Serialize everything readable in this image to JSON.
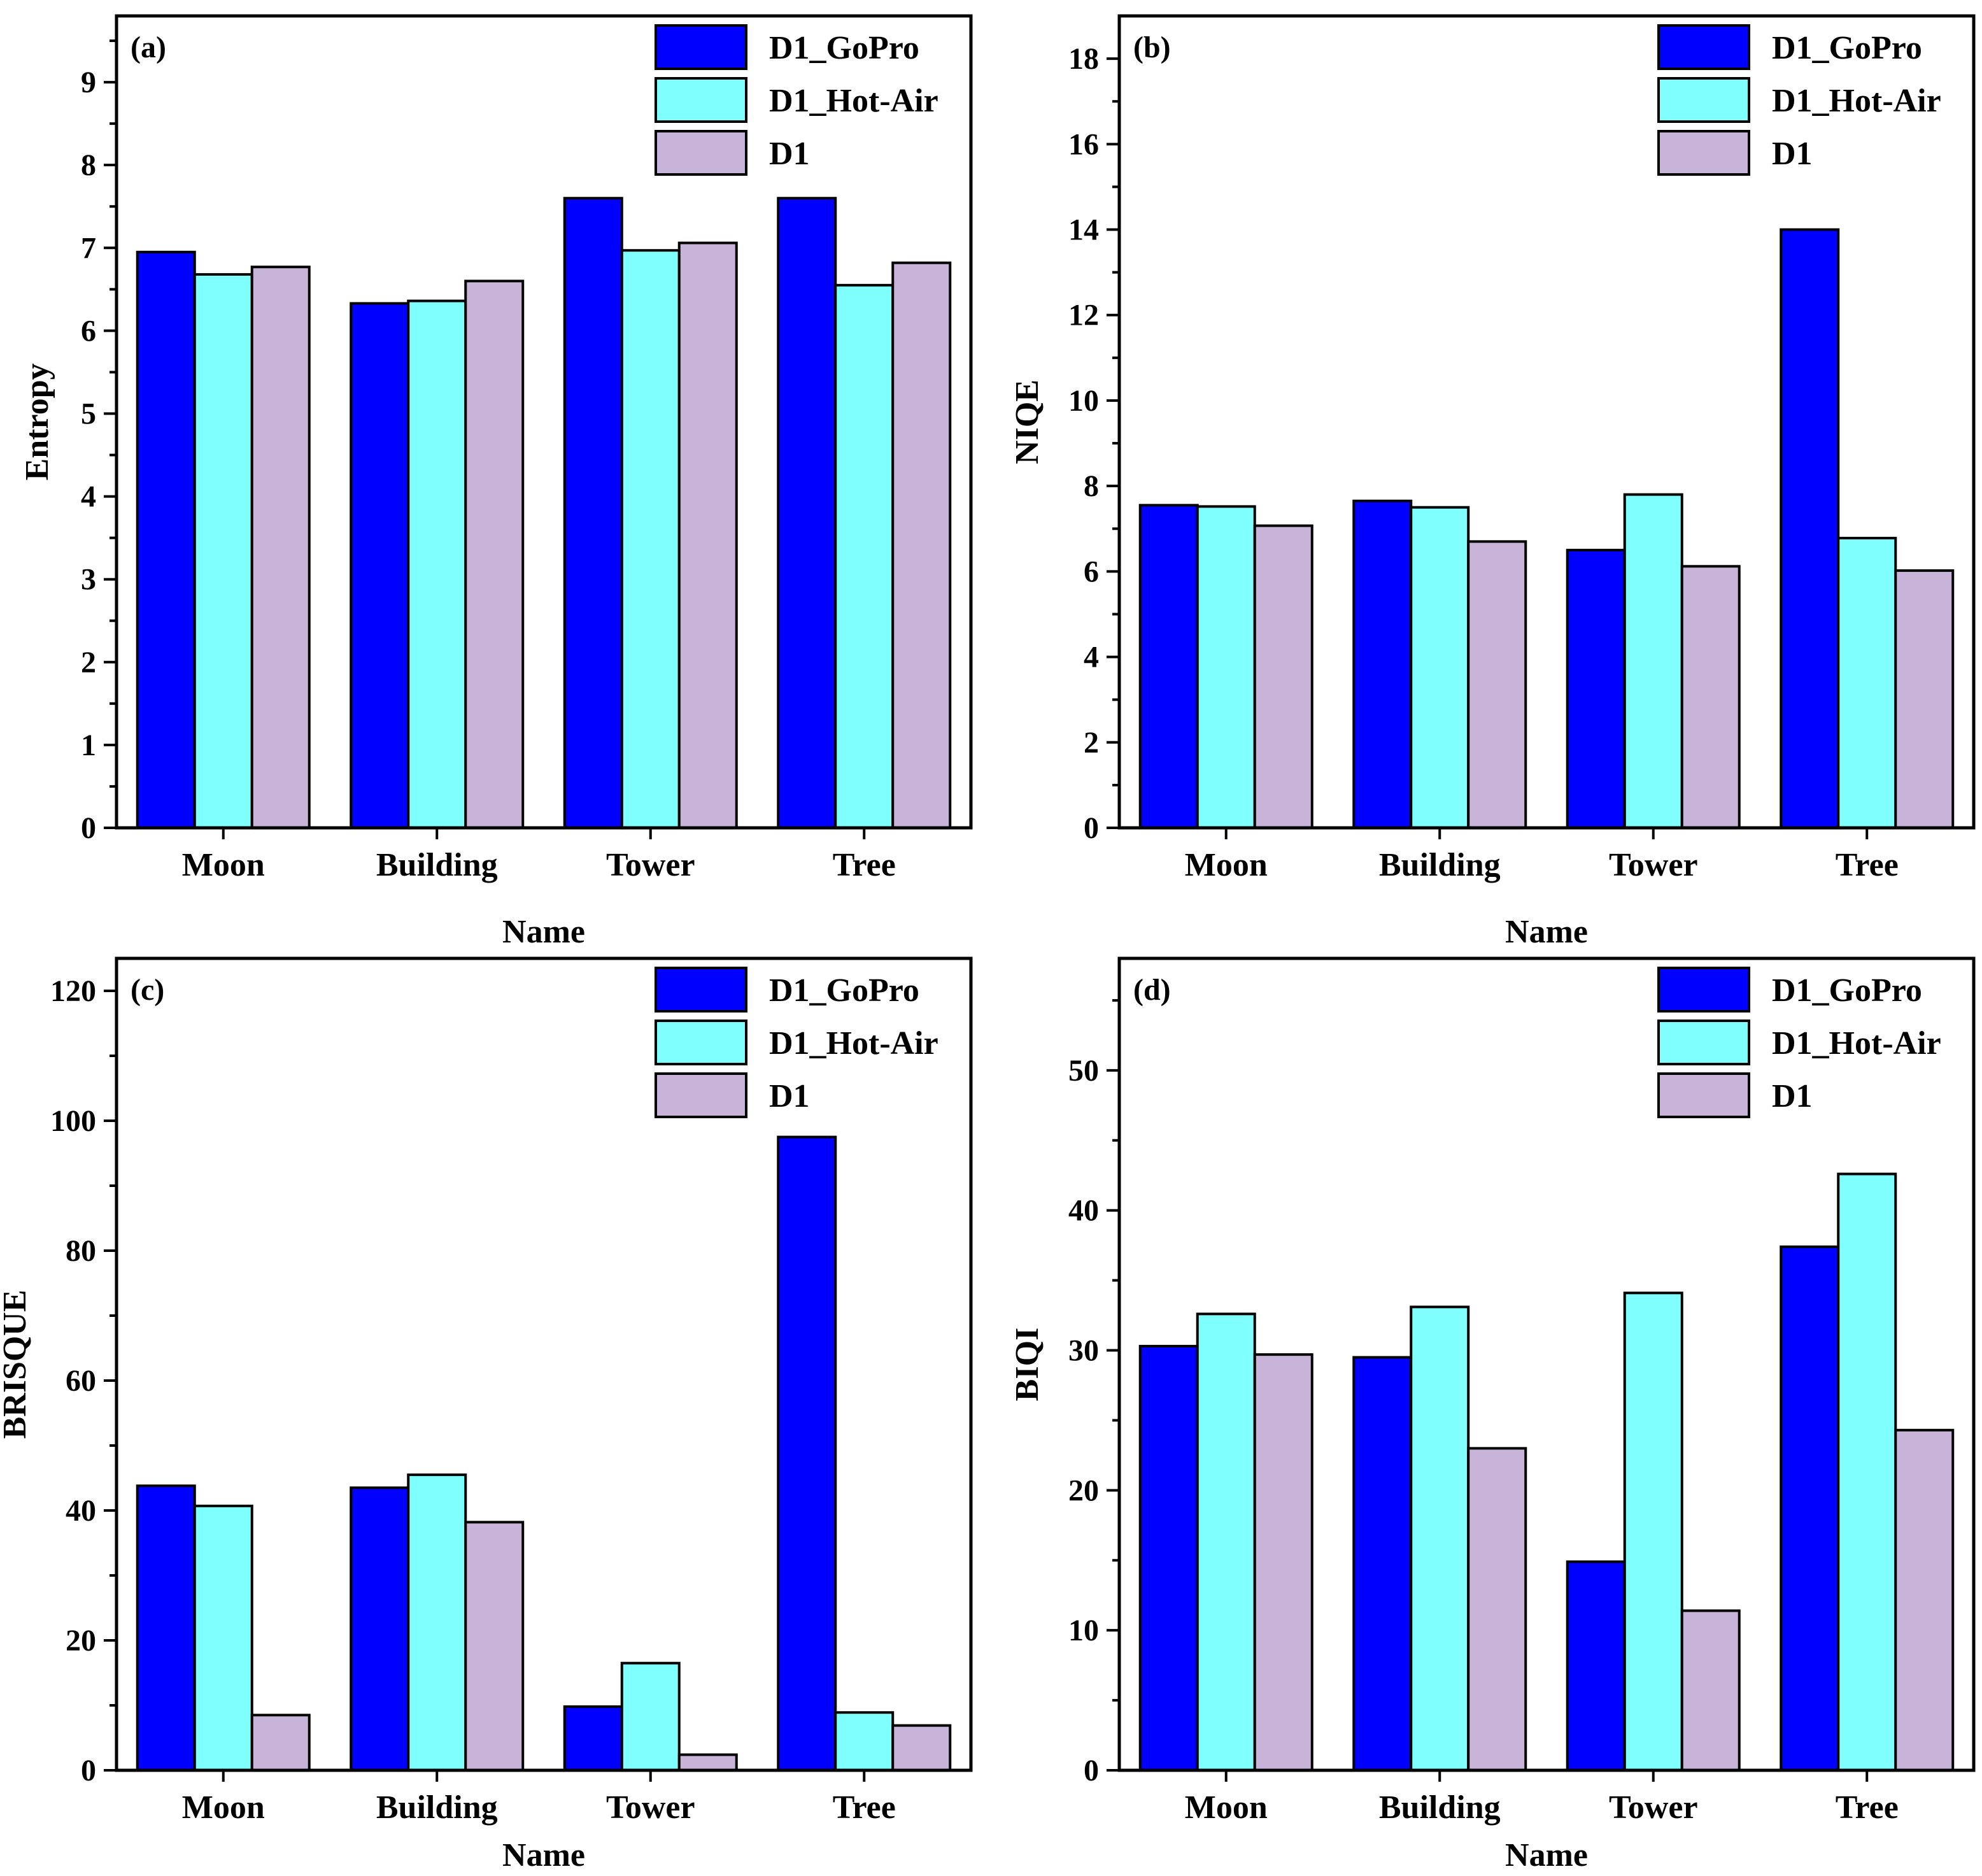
{
  "chart_data": [
    {
      "type": "bar",
      "panel_label": "(a)",
      "categories": [
        "Moon",
        "Building",
        "Tower",
        "Tree"
      ],
      "series": [
        {
          "name": "D1_GoPro",
          "values": [
            6.95,
            6.33,
            7.6,
            7.6
          ],
          "color": "#0000ff"
        },
        {
          "name": "D1_Hot-Air",
          "values": [
            6.68,
            6.36,
            6.97,
            6.55
          ],
          "color": "#80ffff"
        },
        {
          "name": "D1",
          "values": [
            6.77,
            6.6,
            7.06,
            6.82
          ],
          "color": "#c8b4d8"
        }
      ],
      "xlabel": "Name",
      "ylabel": "Entropy",
      "ylim": [
        0,
        9.8
      ],
      "yticks": [
        0,
        1,
        2,
        3,
        4,
        5,
        6,
        7,
        8,
        9
      ],
      "legend": "top-right"
    },
    {
      "type": "bar",
      "panel_label": "(b)",
      "categories": [
        "Moon",
        "Building",
        "Tower",
        "Tree"
      ],
      "series": [
        {
          "name": "D1_GoPro",
          "values": [
            7.55,
            7.65,
            6.5,
            14.0
          ],
          "color": "#0000ff"
        },
        {
          "name": "D1_Hot-Air",
          "values": [
            7.52,
            7.5,
            7.8,
            6.78
          ],
          "color": "#80ffff"
        },
        {
          "name": "D1",
          "values": [
            7.07,
            6.7,
            6.12,
            6.02
          ],
          "color": "#c8b4d8"
        }
      ],
      "xlabel": "Name",
      "ylabel": "NIQE",
      "ylim": [
        0,
        19
      ],
      "yticks": [
        0,
        2,
        4,
        6,
        8,
        10,
        12,
        14,
        16,
        18
      ],
      "legend": "top-right"
    },
    {
      "type": "bar",
      "panel_label": "(c)",
      "categories": [
        "Moon",
        "Building",
        "Tower",
        "Tree"
      ],
      "series": [
        {
          "name": "D1_GoPro",
          "values": [
            43.8,
            43.5,
            9.8,
            97.5
          ],
          "color": "#0000ff"
        },
        {
          "name": "D1_Hot-Air",
          "values": [
            40.7,
            45.5,
            16.5,
            8.9
          ],
          "color": "#80ffff"
        },
        {
          "name": "D1",
          "values": [
            8.5,
            38.2,
            2.4,
            6.9
          ],
          "color": "#c8b4d8"
        }
      ],
      "xlabel": "Name",
      "ylabel": "BRISQUE",
      "ylim": [
        0,
        125
      ],
      "yticks": [
        0,
        20,
        40,
        60,
        80,
        100,
        120
      ],
      "legend": "top-right"
    },
    {
      "type": "bar",
      "panel_label": "(d)",
      "categories": [
        "Moon",
        "Building",
        "Tower",
        "Tree"
      ],
      "series": [
        {
          "name": "D1_GoPro",
          "values": [
            30.3,
            29.5,
            14.9,
            37.4
          ],
          "color": "#0000ff"
        },
        {
          "name": "D1_Hot-Air",
          "values": [
            32.6,
            33.1,
            34.1,
            42.6
          ],
          "color": "#80ffff"
        },
        {
          "name": "D1",
          "values": [
            29.7,
            23.0,
            11.4,
            24.3
          ],
          "color": "#c8b4d8"
        }
      ],
      "xlabel": "Name",
      "ylabel": "BIQI",
      "ylim": [
        0,
        58
      ],
      "yticks": [
        0,
        10,
        20,
        30,
        40,
        50
      ],
      "legend": "top-right"
    }
  ]
}
